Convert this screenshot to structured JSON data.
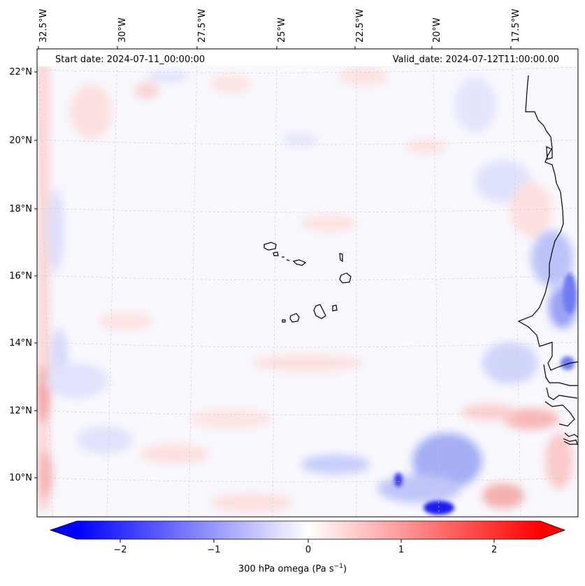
{
  "header": {
    "start_date": "Start date: 2024-07-11_00:00:00",
    "valid_date": "Valid_date: 2024-07-12T11:00:00.00"
  },
  "lon_ticks": [
    "32.5°W",
    "30°W",
    "27.5°W",
    "25°W",
    "22.5°W",
    "20°W",
    "17.5°W"
  ],
  "lat_ticks": [
    "22°N",
    "20°N",
    "18°N",
    "16°N",
    "14°N",
    "12°N",
    "10°N"
  ],
  "colorbar": {
    "label": "300 hPa omega (Pa s",
    "label_sup": "−1",
    "label_end": ")",
    "ticks": [
      "−2",
      "−1",
      "0",
      "1",
      "2"
    ],
    "min": -2.5,
    "max": 2.5,
    "low_color": "#0000ff",
    "mid_color": "#ffffff",
    "high_color": "#ff0000"
  }
}
